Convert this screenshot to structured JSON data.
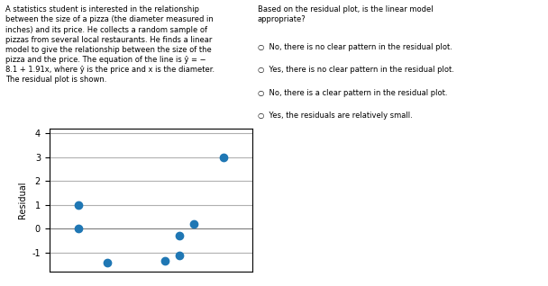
{
  "chart_data": {
    "type": "scatter",
    "annotations": [
      "A statistics student is interested in the relationship\nbetween the size of a pizza (the diameter measured in\ninches) and its price. He collects a random sample of\npizzas from several local restaurants. He finds a linear\nmodel to give the relationship between the size of the\npizza and the price. The equation of the line is ŷ = −\n8.1 + 1.91x, where ŷ is the price and x is the diameter.\nThe residual plot is shown.",
      "Based on the residual plot, is the linear model\nappropriate?",
      "○  No, there is no clear pattern in the residual plot.",
      "○  Yes, there is no clear pattern in the residual plot.",
      "○  No, there is a clear pattern in the residual plot.",
      "○  Yes, the residuals are relatively small."
    ],
    "x": [
      10,
      10,
      12,
      16,
      17,
      17,
      18,
      20
    ],
    "values": [
      1.0,
      0.0,
      -1.4,
      -1.35,
      -1.1,
      -0.3,
      0.2,
      3.0
    ],
    "ylabel": "Residual",
    "xlim": [
      8,
      22
    ],
    "ylim": [
      -1.8,
      4.2
    ],
    "yticks": [
      -1,
      0,
      1,
      2,
      3,
      4
    ],
    "reference_line": 0,
    "grid": true,
    "tick_labels": "y"
  }
}
